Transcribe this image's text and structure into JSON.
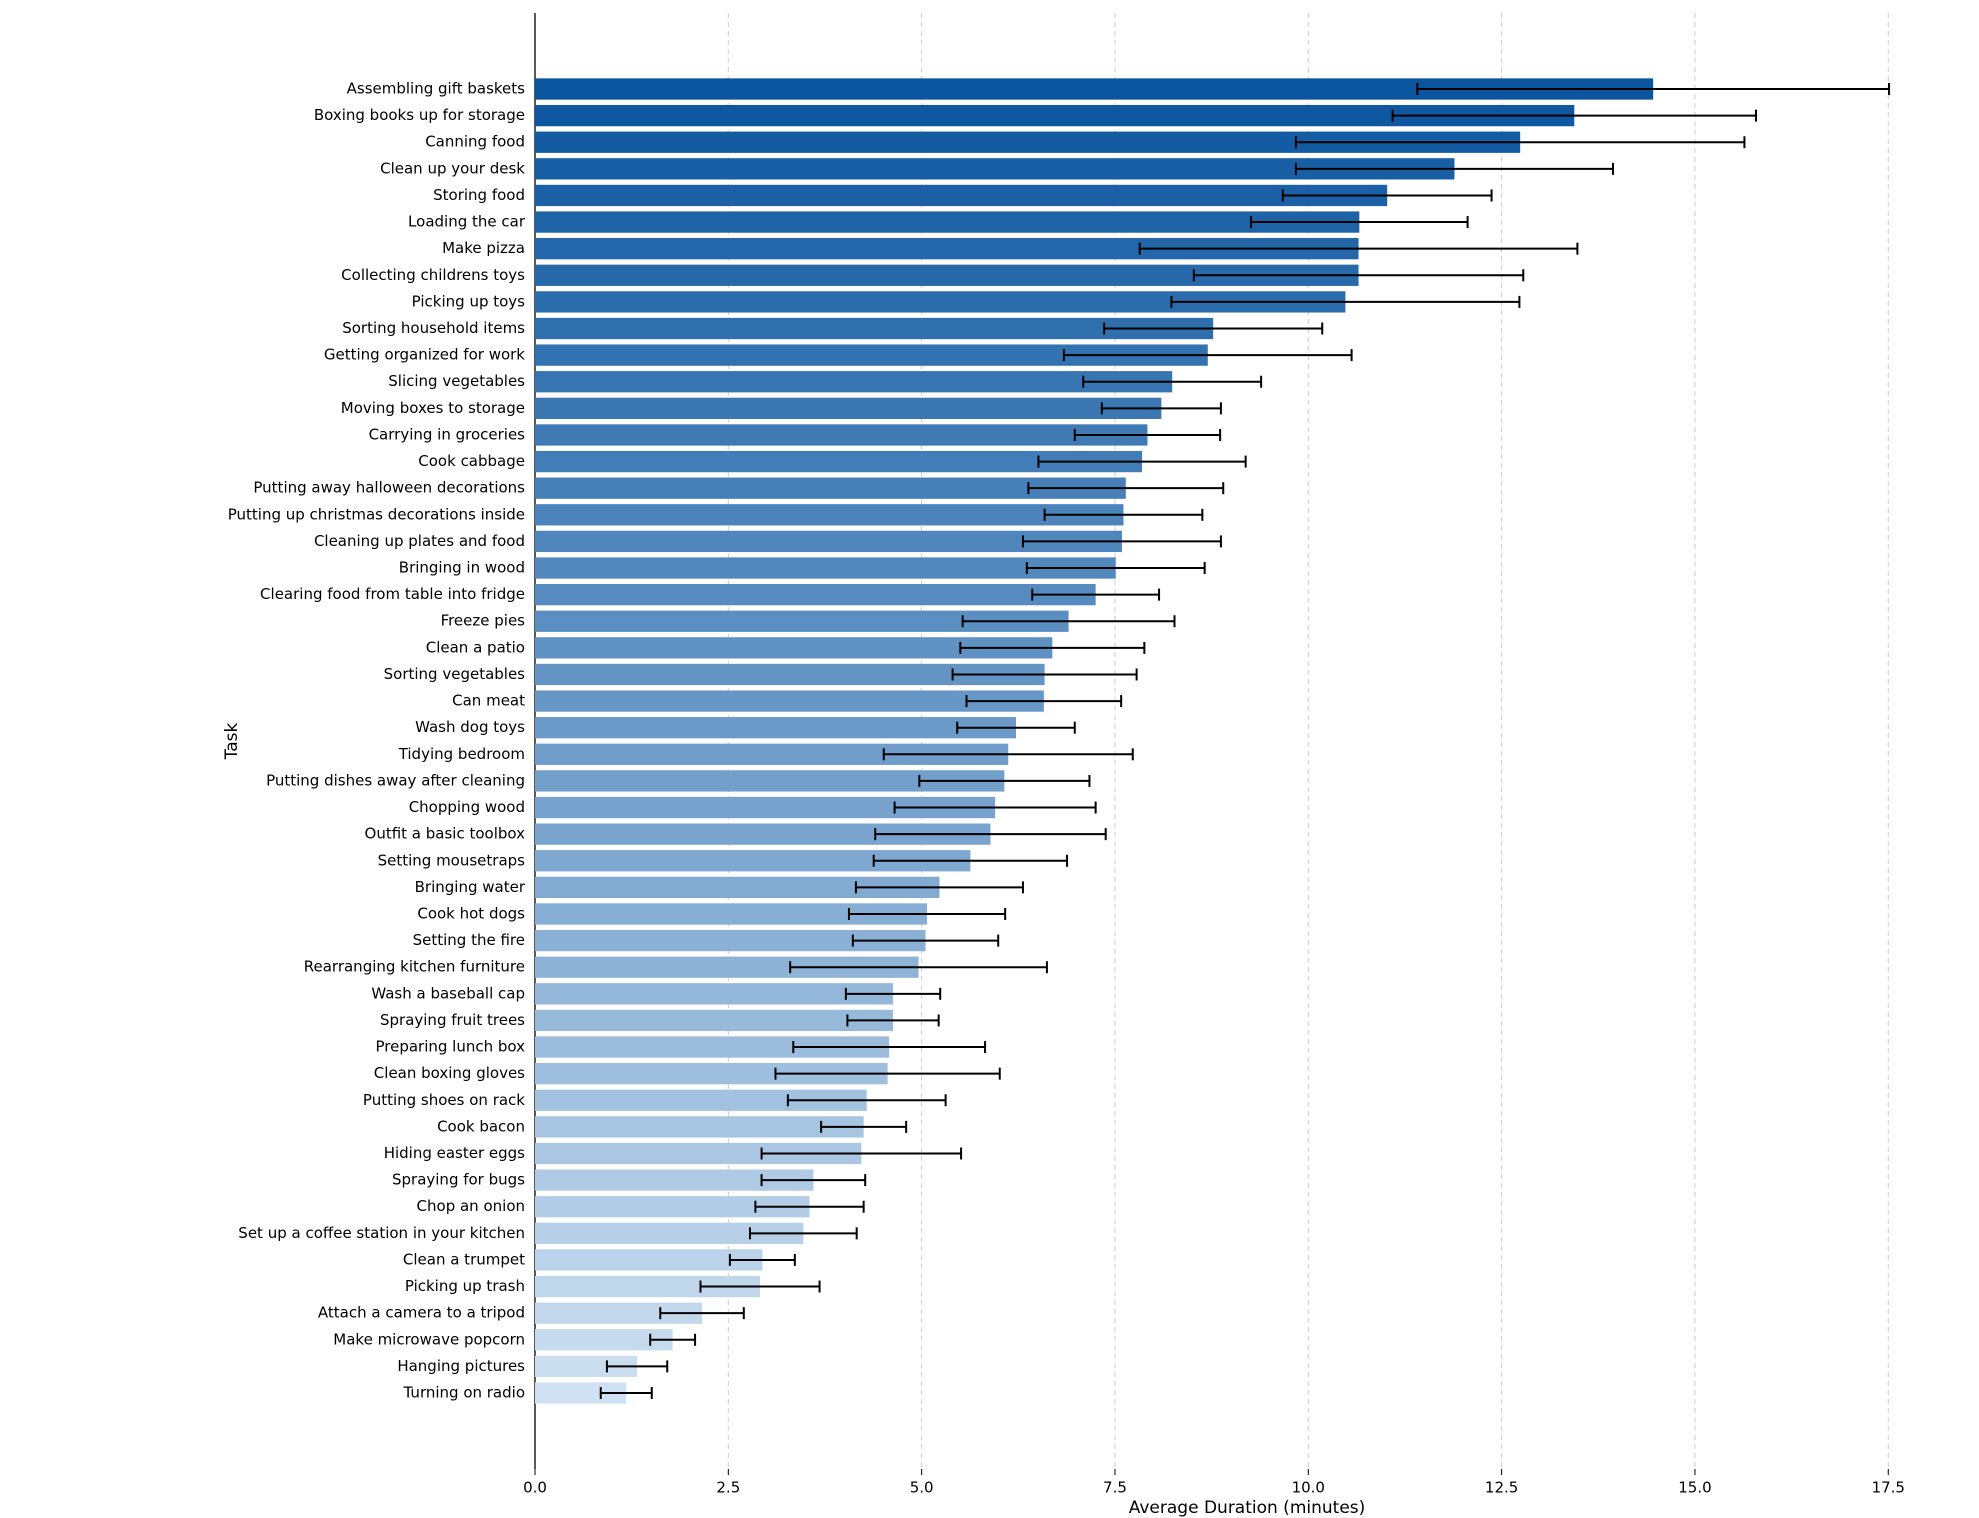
{
  "chart_data": {
    "type": "hbar-error",
    "xlabel": "Average Duration (minutes)",
    "ylabel": "Task",
    "categories": [
      "Assembling gift baskets",
      "Boxing books up for storage",
      "Canning food",
      "Clean up your desk",
      "Storing food",
      "Loading the car",
      "Make pizza",
      "Collecting childrens toys",
      "Picking up toys",
      "Sorting household items",
      "Getting organized for work",
      "Slicing vegetables",
      "Moving boxes to storage",
      "Carrying in groceries",
      "Cook cabbage",
      "Putting away halloween decorations",
      "Putting up christmas decorations inside",
      "Cleaning up plates and food",
      "Bringing in wood",
      "Clearing food from table into fridge",
      "Freeze pies",
      "Clean a patio",
      "Sorting vegetables",
      "Can meat",
      "Wash dog toys",
      "Tidying bedroom",
      "Putting dishes away after cleaning",
      "Chopping wood",
      "Outfit a basic toolbox",
      "Setting mousetraps",
      "Bringing water",
      "Cook hot dogs",
      "Setting the fire",
      "Rearranging kitchen furniture",
      "Wash a baseball cap",
      "Spraying fruit trees",
      "Preparing lunch box",
      "Clean boxing gloves",
      "Putting shoes on rack",
      "Cook bacon",
      "Hiding easter eggs",
      "Spraying for bugs",
      "Chop an onion",
      "Set up a coffee station in your kitchen",
      "Clean a trumpet",
      "Picking up trash",
      "Attach a camera to a tripod",
      "Make microwave popcorn",
      "Hanging pictures",
      "Turning on radio"
    ],
    "values": [
      14.46,
      13.44,
      12.74,
      11.89,
      11.02,
      10.66,
      10.65,
      10.65,
      10.48,
      8.77,
      8.7,
      8.24,
      8.1,
      7.92,
      7.85,
      7.64,
      7.61,
      7.59,
      7.51,
      7.25,
      6.9,
      6.69,
      6.59,
      6.58,
      6.22,
      6.12,
      6.07,
      5.95,
      5.89,
      5.63,
      5.23,
      5.07,
      5.05,
      4.96,
      4.63,
      4.63,
      4.58,
      4.56,
      4.29,
      4.25,
      4.22,
      3.6,
      3.55,
      3.47,
      2.94,
      2.91,
      2.16,
      1.78,
      1.32,
      1.18
    ],
    "errors": [
      3.05,
      2.35,
      2.9,
      2.05,
      1.35,
      1.4,
      2.83,
      2.13,
      2.25,
      1.41,
      1.86,
      1.15,
      0.77,
      0.94,
      1.34,
      1.26,
      1.02,
      1.28,
      1.15,
      0.82,
      1.37,
      1.19,
      1.19,
      1.0,
      0.76,
      1.61,
      1.1,
      1.3,
      1.49,
      1.25,
      1.08,
      1.01,
      0.94,
      1.66,
      0.61,
      0.59,
      1.24,
      1.45,
      1.02,
      0.55,
      1.29,
      0.67,
      0.7,
      0.69,
      0.42,
      0.77,
      0.54,
      0.29,
      0.39,
      0.33
    ],
    "color_range": [
      "#0b559f",
      "#cfe1f2"
    ],
    "xlim": [
      0,
      17.6
    ],
    "xticks": [
      {
        "value": 0,
        "label": "0.0"
      },
      2.5,
      {
        "value": 5,
        "label": "5.0"
      },
      7.5,
      {
        "value": 10,
        "label": "10.0"
      },
      12.5,
      {
        "value": 15,
        "label": "15.0"
      },
      17.5
    ],
    "grid": true
  }
}
